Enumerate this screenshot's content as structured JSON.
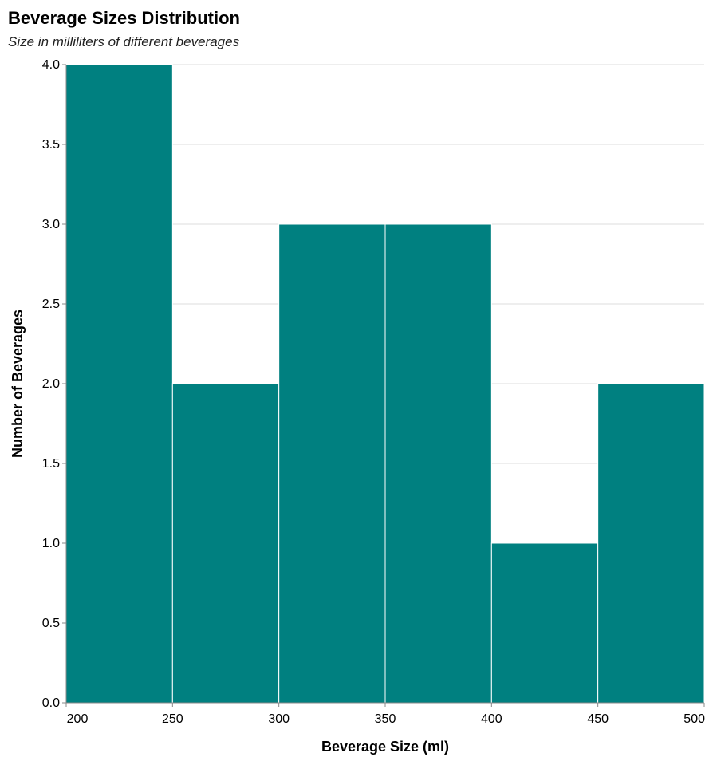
{
  "chart_data": {
    "type": "bar",
    "title": "Beverage Sizes Distribution",
    "subtitle": "Size in milliliters of different beverages",
    "xlabel": "Beverage Size (ml)",
    "ylabel": "Number of Beverages",
    "bins": [
      {
        "start": 200,
        "end": 250,
        "count": 4
      },
      {
        "start": 250,
        "end": 300,
        "count": 2
      },
      {
        "start": 300,
        "end": 350,
        "count": 3
      },
      {
        "start": 350,
        "end": 400,
        "count": 3
      },
      {
        "start": 400,
        "end": 450,
        "count": 1
      },
      {
        "start": 450,
        "end": 500,
        "count": 2
      }
    ],
    "xlim": [
      200,
      500
    ],
    "ylim": [
      0,
      4
    ],
    "x_ticks": [
      "200",
      "250",
      "300",
      "350",
      "400",
      "450",
      "500"
    ],
    "y_ticks": [
      "0.0",
      "0.5",
      "1.0",
      "1.5",
      "2.0",
      "2.5",
      "3.0",
      "3.5",
      "4.0"
    ],
    "grid": "horizontal",
    "bar_color": "#008080",
    "legend": "none"
  }
}
